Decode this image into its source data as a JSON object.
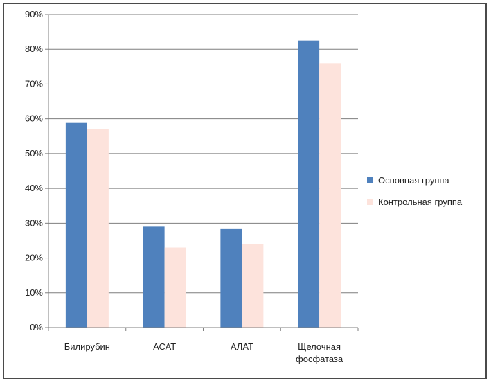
{
  "chart_data": {
    "type": "bar",
    "categories": [
      [
        "Билирубин"
      ],
      [
        "АСАТ"
      ],
      [
        "АЛАТ"
      ],
      [
        "Щелочная",
        "фосфатаза"
      ]
    ],
    "series": [
      {
        "name": "Основная группа",
        "values": [
          59,
          29,
          28.5,
          82.5
        ],
        "color": "#4f81bd"
      },
      {
        "name": "Контрольная группа",
        "values": [
          57,
          23,
          24,
          76
        ],
        "color": "#fde3dc"
      }
    ],
    "ylim": [
      0,
      90
    ],
    "yticks": [
      0,
      10,
      20,
      30,
      40,
      50,
      60,
      70,
      80,
      90
    ],
    "ytick_labels": [
      "0%",
      "10%",
      "20%",
      "30%",
      "40%",
      "50%",
      "60%",
      "70%",
      "80%",
      "90%"
    ],
    "grid": true,
    "legend_position": "right",
    "title": "",
    "xlabel": "",
    "ylabel": ""
  }
}
